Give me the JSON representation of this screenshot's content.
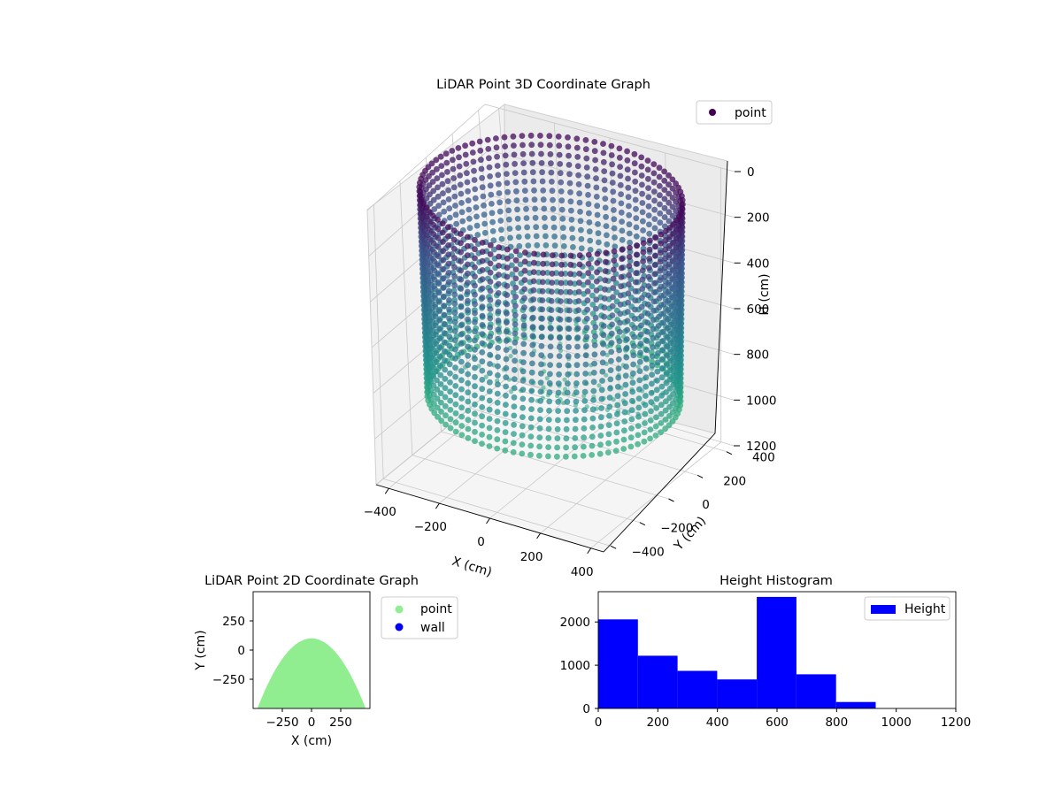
{
  "colors": {
    "viridis_low": "#440154",
    "viridis_mid": "#2a788e",
    "viridis_high": "#35b779",
    "point_2d": "#90ee90",
    "wall_2d": "#0000ff",
    "histogram": "#0000ff"
  },
  "chart_data": [
    {
      "type": "scatter",
      "title": "LiDAR Point 3D Coordinate Graph",
      "xlabel": "X (cm)",
      "ylabel": "Y (cm)",
      "zlabel": "H (cm)",
      "x_ticks": [
        "−400",
        "−200",
        "0",
        "200",
        "400"
      ],
      "y_ticks": [
        "−400",
        "−200",
        "0",
        "200",
        "400"
      ],
      "z_ticks": [
        "0",
        "200",
        "400",
        "600",
        "800",
        "1000",
        "1200"
      ],
      "xlim": [
        -450,
        450
      ],
      "ylim": [
        -450,
        450
      ],
      "zlim": [
        1200,
        0
      ],
      "legend": {
        "placement": "top-right",
        "entries": [
          "point"
        ]
      },
      "series": [
        {
          "name": "point",
          "shape": "cylinder",
          "radius": 430,
          "height_range": [
            0,
            930
          ],
          "color": "viridis by height"
        }
      ],
      "grid": true
    },
    {
      "type": "scatter",
      "title": "LiDAR Point 2D Coordinate Graph",
      "xlabel": "X (cm)",
      "ylabel": "Y (cm)",
      "x_ticks": [
        "−250",
        "0",
        "250"
      ],
      "y_ticks": [
        "250",
        "0",
        "−250"
      ],
      "xlim": [
        -500,
        500
      ],
      "ylim": [
        -500,
        500
      ],
      "legend": {
        "placement": "outside-right",
        "entries": [
          "point",
          "wall"
        ]
      },
      "series": [
        {
          "name": "point",
          "color": "#90ee90",
          "region": "upper arc y ≈ 100 at center, filled down to y = −500"
        },
        {
          "name": "wall",
          "color": "#0000ff",
          "points": []
        }
      ]
    },
    {
      "type": "bar",
      "title": "Height Histogram",
      "xlim": [
        0,
        1200
      ],
      "ylim": [
        0,
        2700
      ],
      "x_ticks": [
        "0",
        "200",
        "400",
        "600",
        "800",
        "1000",
        "1200"
      ],
      "y_ticks": [
        "0",
        "1000",
        "2000"
      ],
      "legend": {
        "placement": "top-right",
        "entries": [
          "Height"
        ]
      },
      "series": [
        {
          "name": "Height",
          "bin_edges": [
            0,
            133,
            266,
            399,
            532,
            665,
            798,
            931
          ],
          "values": [
            2060,
            1220,
            870,
            670,
            2580,
            790,
            150
          ]
        }
      ]
    }
  ]
}
